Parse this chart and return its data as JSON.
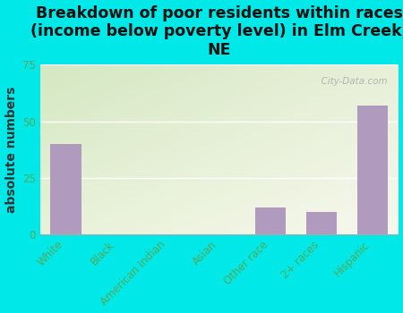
{
  "categories": [
    "White",
    "Black",
    "American Indian",
    "Asian",
    "Other race",
    "2+ races",
    "Hispanic"
  ],
  "values": [
    40,
    0,
    0,
    0,
    12,
    10,
    57
  ],
  "bar_color": "#b09abe",
  "background_color": "#00e8e8",
  "title": "Breakdown of poor residents within races\n(income below poverty level) in Elm Creek,\nNE",
  "ylabel": "absolute numbers",
  "ylim": [
    0,
    75
  ],
  "yticks": [
    0,
    25,
    50,
    75
  ],
  "watermark": "  City-Data.com",
  "title_fontsize": 12.5,
  "ylabel_fontsize": 10,
  "tick_fontsize": 8.5,
  "tick_label_color": "#55aa55",
  "grid_color": "#cccccc",
  "plot_bg_topleft": "#d4e8c2",
  "plot_bg_bottomright": "#f8f8ee"
}
